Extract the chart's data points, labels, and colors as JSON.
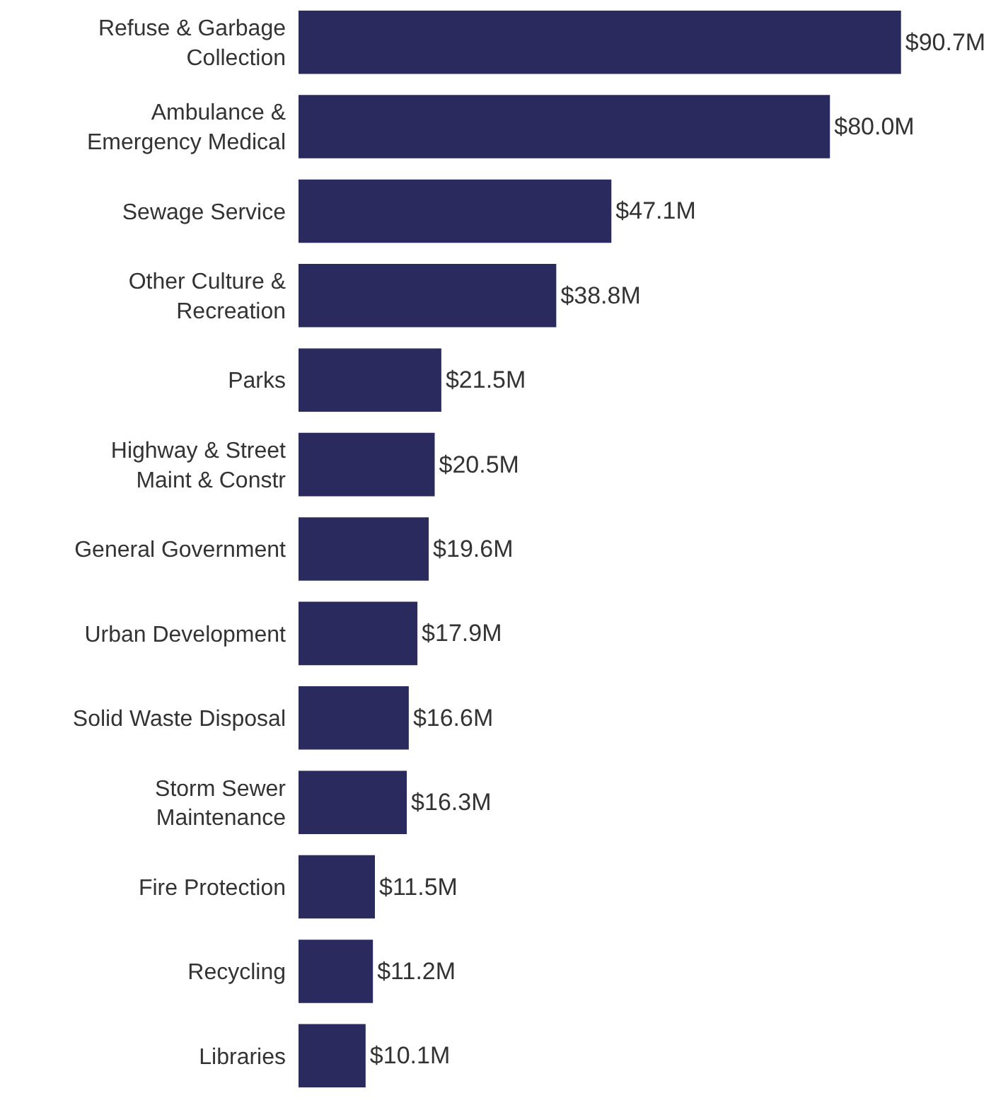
{
  "chart_data": {
    "type": "bar",
    "orientation": "horizontal",
    "categories": [
      "Refuse & Garbage\nCollection",
      "Ambulance &\nEmergency Medical",
      "Sewage Service",
      "Other Culture &\nRecreation",
      "Parks",
      "Highway & Street\nMaint & Constr",
      "General Government",
      "Urban Development",
      "Solid Waste Disposal",
      "Storm Sewer\nMaintenance",
      "Fire Protection",
      "Recycling",
      "Libraries"
    ],
    "values": [
      90.7,
      80.0,
      47.1,
      38.8,
      21.5,
      20.5,
      19.6,
      17.9,
      16.6,
      16.3,
      11.5,
      11.2,
      10.1
    ],
    "value_labels": [
      "$90.7M",
      "$80.0M",
      "$47.1M",
      "$38.8M",
      "$21.5M",
      "$20.5M",
      "$19.6M",
      "$17.9M",
      "$16.6M",
      "$16.3M",
      "$11.5M",
      "$11.2M",
      "$10.1M"
    ],
    "color": "#2b2a5e",
    "xlim": [
      0,
      105
    ],
    "tick_labels": "y",
    "grid": false,
    "legend": false
  }
}
